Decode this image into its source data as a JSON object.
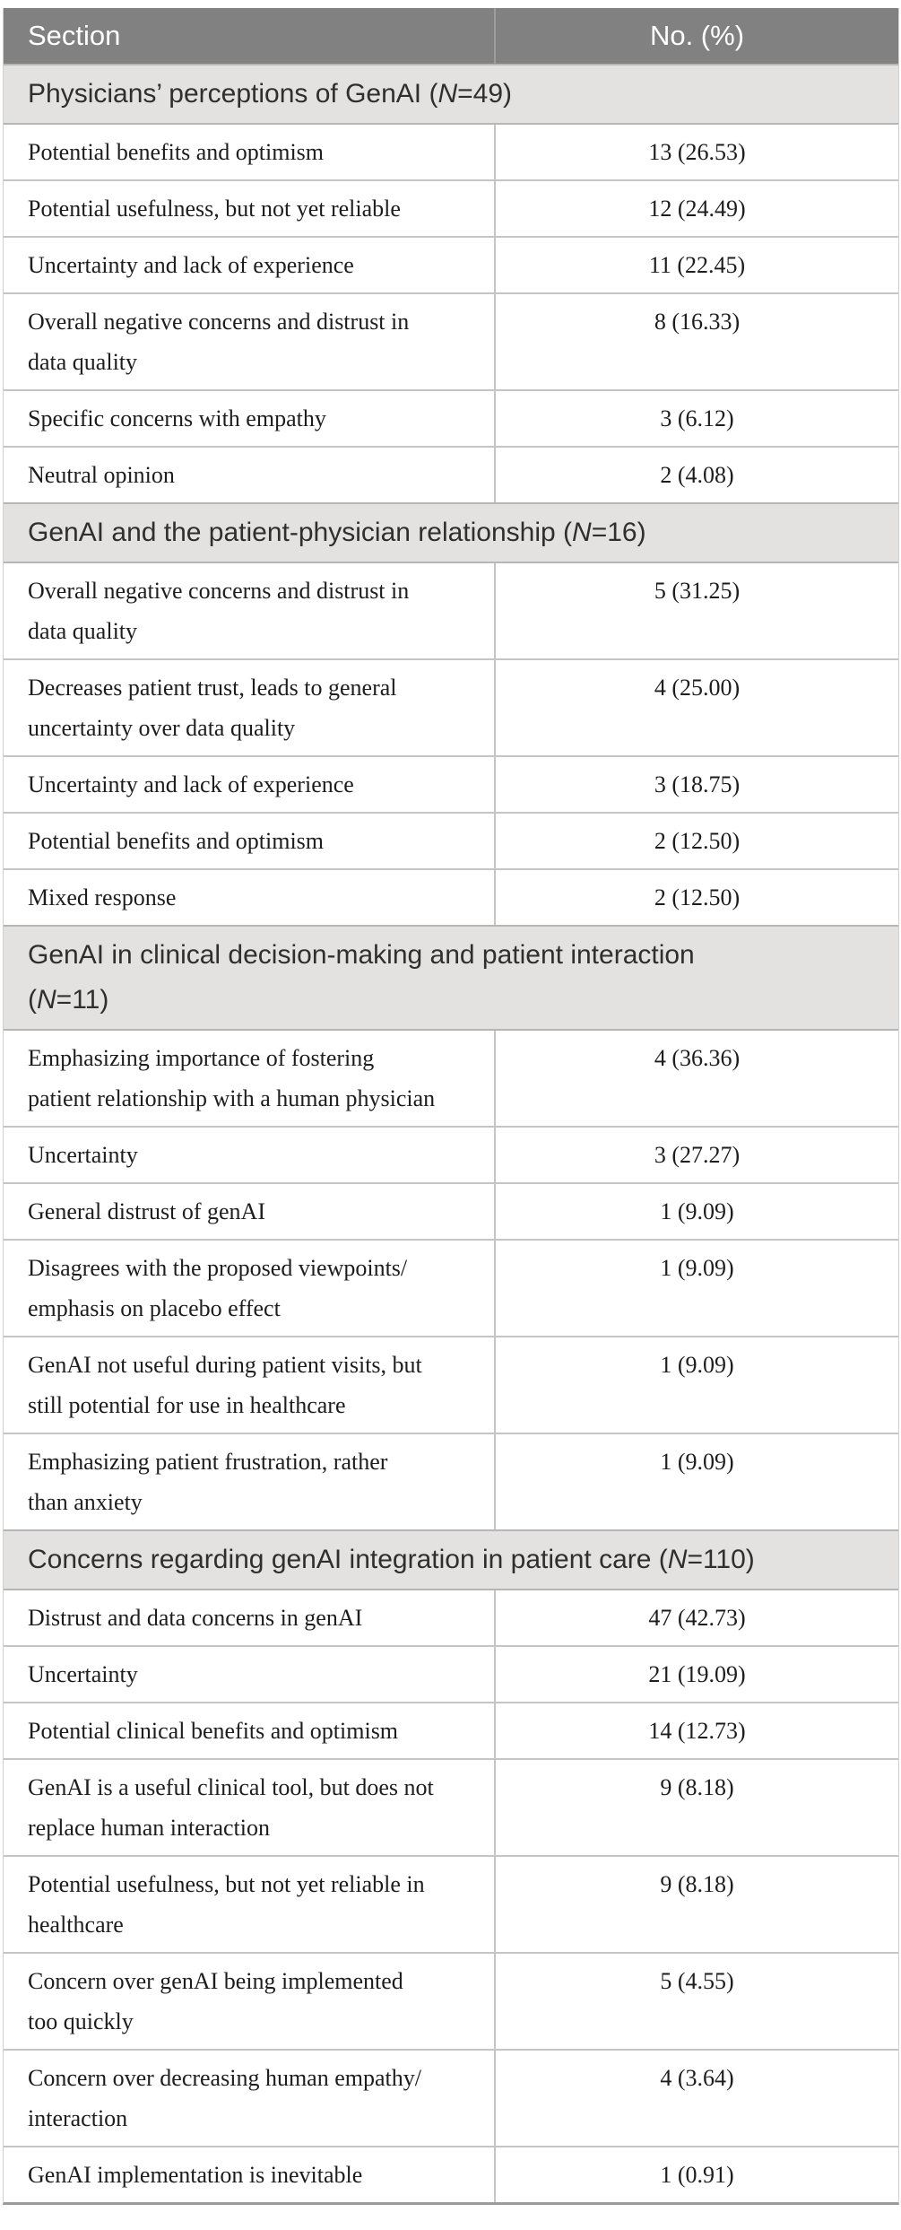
{
  "header": {
    "section_label": "Section",
    "value_label": "No. (%)"
  },
  "colors": {
    "header_bg": "#818181",
    "header_text": "#ffffff",
    "section_header_bg": "#e3e2e1",
    "section_header_text": "#2f2f2e",
    "body_text": "#1d1d1d",
    "row_border": "#c6c5c5",
    "section_border": "#b7b6b6",
    "bottom_border": "#9c9b9b"
  },
  "chart_data": {
    "type": "table",
    "columns": [
      "Section",
      "No. (%)"
    ],
    "sections": [
      {
        "title": "Physicians’ perceptions of GenAI (N=49)",
        "title_pre": "Physicians’ perceptions of GenAI (",
        "title_n": "N",
        "title_post": "=49)",
        "n_total": 49,
        "rows": [
          {
            "label": "Potential benefits and optimism",
            "value": "13 (26.53)",
            "count": 13,
            "percent": 26.53
          },
          {
            "label": "Potential usefulness, but not yet reliable",
            "value": "12 (24.49)",
            "count": 12,
            "percent": 24.49
          },
          {
            "label": "Uncertainty and lack of experience",
            "value": "11 (22.45)",
            "count": 11,
            "percent": 22.45
          },
          {
            "label": "Overall negative concerns and distrust in\ndata quality",
            "value": "8 (16.33)",
            "count": 8,
            "percent": 16.33
          },
          {
            "label": "Specific concerns with empathy",
            "value": "3 (6.12)",
            "count": 3,
            "percent": 6.12
          },
          {
            "label": "Neutral opinion",
            "value": "2 (4.08)",
            "count": 2,
            "percent": 4.08
          }
        ]
      },
      {
        "title": "GenAI and the patient-physician relationship (N=16)",
        "title_pre": "GenAI and the patient-physician relationship (",
        "title_n": "N",
        "title_post": "=16)",
        "n_total": 16,
        "rows": [
          {
            "label": "Overall negative concerns and distrust in\ndata quality",
            "value": "5 (31.25)",
            "count": 5,
            "percent": 31.25
          },
          {
            "label": "Decreases patient trust, leads to general\nuncertainty over data quality",
            "value": "4 (25.00)",
            "count": 4,
            "percent": 25.0
          },
          {
            "label": "Uncertainty and lack of experience",
            "value": "3 (18.75)",
            "count": 3,
            "percent": 18.75
          },
          {
            "label": "Potential benefits and optimism",
            "value": "2 (12.50)",
            "count": 2,
            "percent": 12.5
          },
          {
            "label": "Mixed response",
            "value": "2 (12.50)",
            "count": 2,
            "percent": 12.5
          }
        ]
      },
      {
        "title": "GenAI in clinical decision-making and patient interaction (N=11)",
        "title_pre": "GenAI in clinical decision-making and patient interaction\n(",
        "title_n": "N",
        "title_post": "=11)",
        "n_total": 11,
        "rows": [
          {
            "label": "Emphasizing importance of fostering\npatient relationship with a human physician",
            "value": "4 (36.36)",
            "count": 4,
            "percent": 36.36
          },
          {
            "label": "Uncertainty",
            "value": "3 (27.27)",
            "count": 3,
            "percent": 27.27
          },
          {
            "label": "General distrust of genAI",
            "value": "1 (9.09)",
            "count": 1,
            "percent": 9.09
          },
          {
            "label": "Disagrees with the proposed viewpoints/\nemphasis on placebo effect",
            "value": "1 (9.09)",
            "count": 1,
            "percent": 9.09
          },
          {
            "label": "GenAI not useful during patient visits, but\nstill potential for use in healthcare",
            "value": "1 (9.09)",
            "count": 1,
            "percent": 9.09
          },
          {
            "label": "Emphasizing patient frustration, rather\nthan anxiety",
            "value": "1 (9.09)",
            "count": 1,
            "percent": 9.09
          }
        ]
      },
      {
        "title": "Concerns regarding genAI integration in patient care (N=110)",
        "title_pre": "Concerns regarding genAI integration in patient care (",
        "title_n": "N",
        "title_post": "=110)",
        "n_total": 110,
        "rows": [
          {
            "label": "Distrust and data concerns in genAI",
            "value": "47 (42.73)",
            "count": 47,
            "percent": 42.73
          },
          {
            "label": "Uncertainty",
            "value": "21 (19.09)",
            "count": 21,
            "percent": 19.09
          },
          {
            "label": "Potential clinical benefits and optimism",
            "value": "14 (12.73)",
            "count": 14,
            "percent": 12.73
          },
          {
            "label": "GenAI is a useful clinical tool, but does not\nreplace human interaction",
            "value": "9 (8.18)",
            "count": 9,
            "percent": 8.18
          },
          {
            "label": "Potential usefulness, but not yet reliable in\nhealthcare",
            "value": "9 (8.18)",
            "count": 9,
            "percent": 8.18
          },
          {
            "label": "Concern over genAI being implemented\ntoo quickly",
            "value": "5 (4.55)",
            "count": 5,
            "percent": 4.55
          },
          {
            "label": "Concern over decreasing human empathy/\ninteraction",
            "value": "4 (3.64)",
            "count": 4,
            "percent": 3.64
          },
          {
            "label": "GenAI implementation is inevitable",
            "value": "1 (0.91)",
            "count": 1,
            "percent": 0.91
          }
        ]
      }
    ]
  }
}
